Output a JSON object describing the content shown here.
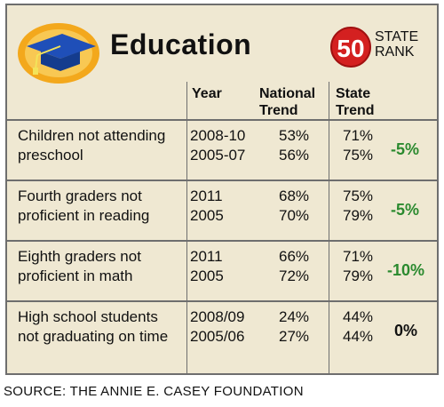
{
  "title": "Education",
  "rank": {
    "number": "50",
    "label_line1": "STATE",
    "label_line2": "RANK"
  },
  "headers": {
    "year": "Year",
    "national_line1": "National",
    "national_line2": "Trend",
    "state_line1": "State",
    "state_line2": "Trend"
  },
  "rows": [
    {
      "label_line1": "Children not attending",
      "label_line2": "preschool",
      "year1": "2008-10",
      "year2": "2005-07",
      "national1": "53%",
      "national2": "56%",
      "state1": "71%",
      "state2": "75%",
      "change": "-5%",
      "change_color": "#2b8a2f"
    },
    {
      "label_line1": "Fourth graders not",
      "label_line2": "proficient in reading",
      "year1": "2011",
      "year2": "2005",
      "national1": "68%",
      "national2": "70%",
      "state1": "75%",
      "state2": "79%",
      "change": "-5%",
      "change_color": "#2b8a2f"
    },
    {
      "label_line1": "Eighth graders not",
      "label_line2": "proficient in math",
      "year1": "2011",
      "year2": "2005",
      "national1": "66%",
      "national2": "72%",
      "state1": "71%",
      "state2": "79%",
      "change": "-10%",
      "change_color": "#2b8a2f"
    },
    {
      "label_line1": "High school students",
      "label_line2": "not graduating on time",
      "year1": "2008/09",
      "year2": "2005/06",
      "national1": "24%",
      "national2": "27%",
      "state1": "44%",
      "state2": "44%",
      "change": "0%",
      "change_color": "#111111"
    }
  ],
  "source": "SOURCE: THE ANNIE E. CASEY FOUNDATION",
  "icon": "graduation-cap-icon"
}
